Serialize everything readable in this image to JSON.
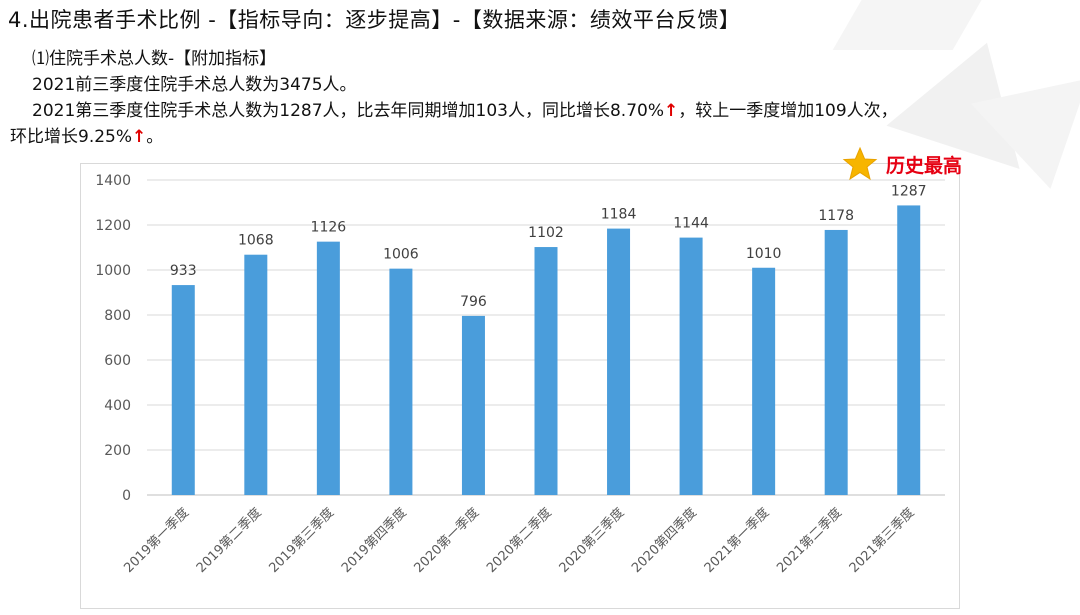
{
  "slide": {
    "title": "4.出院患者手术比例 -【指标导向：逐步提高】-【数据来源：绩效平台反馈】",
    "lines": [
      "⑴住院手术总人数-【附加指标】",
      "2021前三季度住院手术总人数为3475人。",
      "2021第三季度住院手术总人数为1287人，比去年同期增加103人，同比增长8.70%",
      "，较上一季度增加109人次，",
      "环比增长9.25%",
      "。"
    ],
    "arrow_symbol": "↑",
    "arrow_color": "#e00000"
  },
  "badge": {
    "text": "历史最高",
    "icon": "star-icon",
    "star_color": "#f7b500",
    "text_color": "#e60012"
  },
  "chart_data": {
    "type": "bar",
    "categories": [
      "2019第一季度",
      "2019第二季度",
      "2019第三季度",
      "2019第四季度",
      "2020第一季度",
      "2020第二季度",
      "2020第三季度",
      "2020第四季度",
      "2021第一季度",
      "2021第二季度",
      "2021第三季度"
    ],
    "values": [
      933,
      1068,
      1126,
      1006,
      796,
      1102,
      1184,
      1144,
      1010,
      1178,
      1287
    ],
    "ylim": [
      0,
      1400
    ],
    "yticks": [
      0,
      200,
      400,
      600,
      800,
      1000,
      1200,
      1400
    ],
    "grid": true,
    "bar_color": "#4a9ddb",
    "data_labels": true
  }
}
